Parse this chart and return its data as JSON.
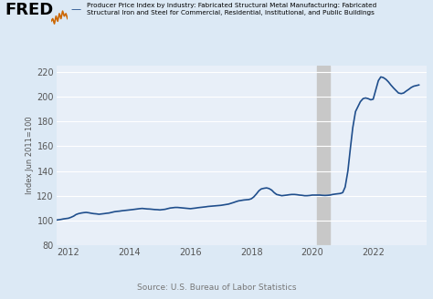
{
  "title_line1": "Producer Price Index by Industry: Fabricated Structural Metal Manufacturing: Fabricated",
  "title_line2": "Structural Iron and Steel for Commercial, Residential, Institutional, and Public Buildings",
  "ylabel": "Index Jun 2011=100",
  "source": "Source: U.S. Bureau of Labor Statistics",
  "line_color": "#1f4e8c",
  "line_width": 1.2,
  "bg_color": "#dce9f5",
  "plot_bg_color": "#e8eff8",
  "shade_x_start": 2020.17,
  "shade_x_end": 2020.58,
  "shade_color": "#c8c8c8",
  "ylim": [
    80,
    225
  ],
  "yticks": [
    80,
    100,
    120,
    140,
    160,
    180,
    200,
    220
  ],
  "xlim": [
    2011.6,
    2023.75
  ],
  "xticks": [
    2012,
    2014,
    2016,
    2018,
    2020,
    2022
  ],
  "x": [
    2011.5,
    2011.58,
    2011.67,
    2011.75,
    2011.83,
    2011.92,
    2012.0,
    2012.08,
    2012.17,
    2012.25,
    2012.33,
    2012.42,
    2012.5,
    2012.58,
    2012.67,
    2012.75,
    2012.83,
    2012.92,
    2013.0,
    2013.08,
    2013.17,
    2013.25,
    2013.33,
    2013.42,
    2013.5,
    2013.58,
    2013.67,
    2013.75,
    2013.83,
    2013.92,
    2014.0,
    2014.08,
    2014.17,
    2014.25,
    2014.33,
    2014.42,
    2014.5,
    2014.58,
    2014.67,
    2014.75,
    2014.83,
    2014.92,
    2015.0,
    2015.08,
    2015.17,
    2015.25,
    2015.33,
    2015.42,
    2015.5,
    2015.58,
    2015.67,
    2015.75,
    2015.83,
    2015.92,
    2016.0,
    2016.08,
    2016.17,
    2016.25,
    2016.33,
    2016.42,
    2016.5,
    2016.58,
    2016.67,
    2016.75,
    2016.83,
    2016.92,
    2017.0,
    2017.08,
    2017.17,
    2017.25,
    2017.33,
    2017.42,
    2017.5,
    2017.58,
    2017.67,
    2017.75,
    2017.83,
    2017.92,
    2018.0,
    2018.08,
    2018.17,
    2018.25,
    2018.33,
    2018.42,
    2018.5,
    2018.58,
    2018.67,
    2018.75,
    2018.83,
    2018.92,
    2019.0,
    2019.08,
    2019.17,
    2019.25,
    2019.33,
    2019.42,
    2019.5,
    2019.58,
    2019.67,
    2019.75,
    2019.83,
    2019.92,
    2020.0,
    2020.08,
    2020.17,
    2020.25,
    2020.33,
    2020.42,
    2020.5,
    2020.58,
    2020.67,
    2020.75,
    2020.83,
    2020.92,
    2021.0,
    2021.08,
    2021.17,
    2021.25,
    2021.33,
    2021.42,
    2021.5,
    2021.58,
    2021.67,
    2021.75,
    2021.83,
    2021.92,
    2022.0,
    2022.08,
    2022.17,
    2022.25,
    2022.33,
    2022.42,
    2022.5,
    2022.58,
    2022.67,
    2022.75,
    2022.83,
    2022.92,
    2023.0,
    2023.08,
    2023.17,
    2023.25,
    2023.33,
    2023.42,
    2023.5
  ],
  "y": [
    100.0,
    100.2,
    100.5,
    100.8,
    101.2,
    101.5,
    101.8,
    102.5,
    103.5,
    104.8,
    105.5,
    106.0,
    106.3,
    106.5,
    106.2,
    105.8,
    105.5,
    105.3,
    105.0,
    105.2,
    105.5,
    105.8,
    106.0,
    106.5,
    107.0,
    107.3,
    107.5,
    107.8,
    108.0,
    108.3,
    108.5,
    108.7,
    109.0,
    109.3,
    109.5,
    109.7,
    109.5,
    109.3,
    109.2,
    109.0,
    108.8,
    108.7,
    108.5,
    108.7,
    109.0,
    109.5,
    110.0,
    110.3,
    110.5,
    110.5,
    110.3,
    110.2,
    110.0,
    109.8,
    109.5,
    109.7,
    110.0,
    110.3,
    110.5,
    110.8,
    111.0,
    111.3,
    111.5,
    111.7,
    111.8,
    112.0,
    112.2,
    112.5,
    112.8,
    113.2,
    113.8,
    114.5,
    115.2,
    115.8,
    116.2,
    116.5,
    116.7,
    116.9,
    117.5,
    119.0,
    121.5,
    124.0,
    125.5,
    126.0,
    126.3,
    125.8,
    124.5,
    122.5,
    121.0,
    120.5,
    120.0,
    120.2,
    120.5,
    120.8,
    121.0,
    121.0,
    120.8,
    120.5,
    120.3,
    120.0,
    120.0,
    120.2,
    120.5,
    120.5,
    120.5,
    120.5,
    120.3,
    120.2,
    120.3,
    120.5,
    121.0,
    121.3,
    121.5,
    121.8,
    122.5,
    127.0,
    140.0,
    158.0,
    175.0,
    188.0,
    192.0,
    196.0,
    198.5,
    199.0,
    198.5,
    197.5,
    198.0,
    205.0,
    213.0,
    216.0,
    215.5,
    214.0,
    212.0,
    209.5,
    207.0,
    205.0,
    203.0,
    202.5,
    203.0,
    204.5,
    206.0,
    207.5,
    208.5,
    209.0,
    209.5
  ]
}
